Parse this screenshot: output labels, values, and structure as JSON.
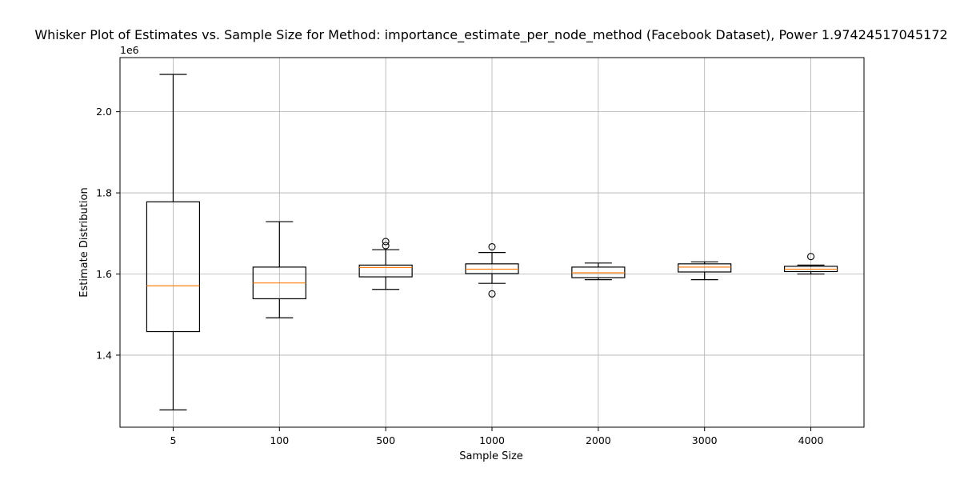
{
  "chart_data": {
    "type": "boxplot",
    "title": "Whisker Plot of Estimates vs. Sample Size for Method: importance_estimate_per_node_method (Facebook Dataset), Power 1.97424517045172",
    "xlabel": "Sample Size",
    "ylabel": "Estimate Distribution",
    "y_offset_label": "1e6",
    "y_scale": 1000000,
    "categories": [
      "5",
      "100",
      "500",
      "1000",
      "2000",
      "3000",
      "4000"
    ],
    "ylim": [
      1.2224,
      2.1334
    ],
    "yticks": [
      1.4,
      1.6,
      1.8,
      2.0
    ],
    "ytick_labels": [
      "1.4",
      "1.6",
      "1.8",
      "2.0"
    ],
    "grid": true,
    "boxes": [
      {
        "category": "5",
        "whisker_low": 1.265,
        "q1": 1.458,
        "median": 1.571,
        "q3": 1.778,
        "whisker_high": 2.092,
        "outliers": []
      },
      {
        "category": "100",
        "whisker_low": 1.492,
        "q1": 1.539,
        "median": 1.578,
        "q3": 1.617,
        "whisker_high": 1.729,
        "outliers": []
      },
      {
        "category": "500",
        "whisker_low": 1.562,
        "q1": 1.593,
        "median": 1.616,
        "q3": 1.622,
        "whisker_high": 1.66,
        "outliers": [
          1.67,
          1.68
        ]
      },
      {
        "category": "1000",
        "whisker_low": 1.577,
        "q1": 1.601,
        "median": 1.612,
        "q3": 1.625,
        "whisker_high": 1.653,
        "outliers": [
          1.551,
          1.667
        ]
      },
      {
        "category": "2000",
        "whisker_low": 1.586,
        "q1": 1.591,
        "median": 1.603,
        "q3": 1.617,
        "whisker_high": 1.627,
        "outliers": []
      },
      {
        "category": "3000",
        "whisker_low": 1.586,
        "q1": 1.605,
        "median": 1.617,
        "q3": 1.625,
        "whisker_high": 1.63,
        "outliers": []
      },
      {
        "category": "4000",
        "whisker_low": 1.6,
        "q1": 1.606,
        "median": 1.612,
        "q3": 1.619,
        "whisker_high": 1.622,
        "outliers": [
          1.643
        ]
      }
    ],
    "colors": {
      "box": "#000000",
      "median": "#ff7f0e",
      "grid": "#b0b0b0",
      "axes": "#000000"
    }
  }
}
